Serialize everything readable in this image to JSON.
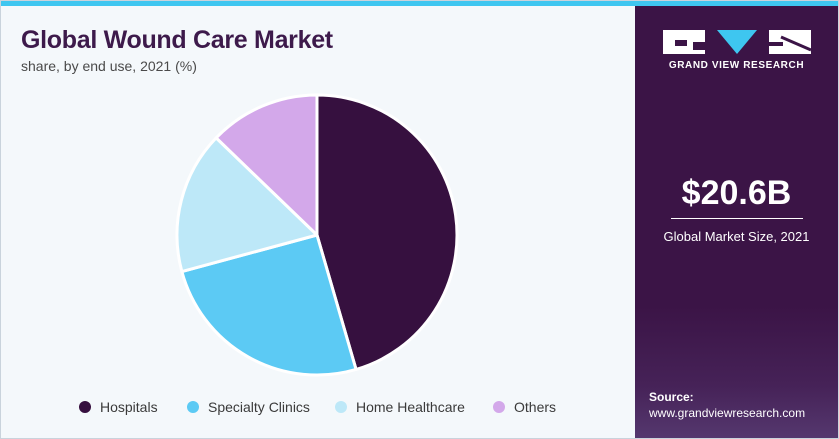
{
  "chart_data": {
    "type": "pie",
    "title": "Global Wound Care Market",
    "subtitle": "share, by end use, 2021 (%)",
    "categories": [
      "Hospitals",
      "Specialty Clinics",
      "Home Healthcare",
      "Others"
    ],
    "values": [
      45.5,
      25.3,
      16.4,
      12.8
    ],
    "colors": [
      "#36103f",
      "#5ccaf4",
      "#bde8f8",
      "#d3a8ea"
    ],
    "legend_position": "bottom"
  },
  "sidebar": {
    "brand": "GRAND VIEW RESEARCH",
    "market_size_value": "$20.6B",
    "market_size_label": "Global Market Size, 2021",
    "source_label": "Source:",
    "source_url": "www.grandviewresearch.com",
    "colors": {
      "background": "#3b1446",
      "accent": "#3ec6f0"
    }
  }
}
